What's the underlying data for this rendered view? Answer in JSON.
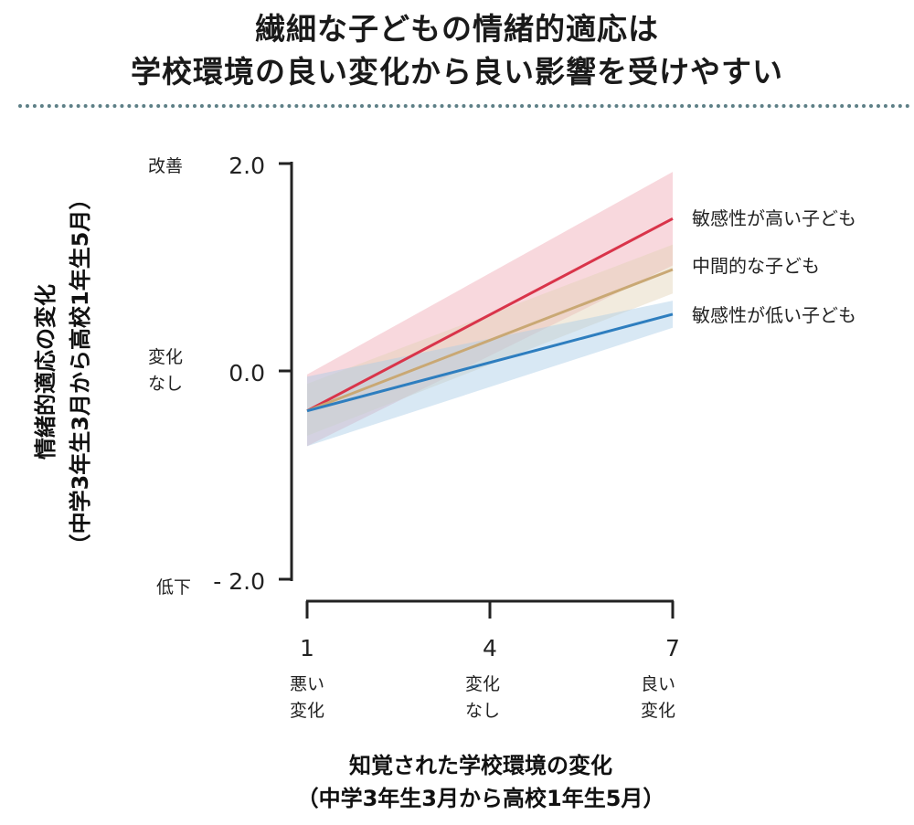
{
  "header": {
    "title_line1": "繊細な子どもの情緒的適応は",
    "title_line2": "学校環境の良い変化から良い影響を受けやすい"
  },
  "chart_data": {
    "type": "line",
    "title": "繊細な子どもの情緒的適応は学校環境の良い変化から良い影響を受けやすい",
    "xlabel_line1": "知覚された学校環境の変化",
    "xlabel_line2": "（中学3年生3月から高校1年生5月）",
    "ylabel_line1": "情緒的適応の変化",
    "ylabel_line2": "（中学3年生3月から高校1年生5月）",
    "x_ticks": [
      "1",
      "4",
      "7"
    ],
    "x_tick_annotations": [
      [
        "悪い",
        "変化"
      ],
      [
        "変化",
        "なし"
      ],
      [
        "良い",
        "変化"
      ]
    ],
    "y_ticks": [
      "2.0",
      "0.0",
      "- 2.0"
    ],
    "y_tick_annotations": [
      [
        "改善"
      ],
      [
        "変化",
        "なし"
      ],
      [
        "低下"
      ]
    ],
    "xlim": [
      1,
      7
    ],
    "ylim": [
      -2.0,
      2.0
    ],
    "series": [
      {
        "name": "敏感性が高い子ども",
        "color": "#d9344a",
        "band_color": "#f0a8b4",
        "x": [
          1,
          7
        ],
        "y": [
          -0.38,
          1.47
        ],
        "ci_lower": [
          -0.72,
          1.02
        ],
        "ci_upper": [
          -0.03,
          1.92
        ]
      },
      {
        "name": "中間的な子ども",
        "color": "#c9a874",
        "band_color": "#e3d3b6",
        "x": [
          1,
          7
        ],
        "y": [
          -0.38,
          0.98
        ],
        "ci_lower": [
          -0.62,
          0.75
        ],
        "ci_upper": [
          -0.12,
          1.22
        ]
      },
      {
        "name": "敏感性が低い子ども",
        "color": "#2e7ebf",
        "band_color": "#a9cbe6",
        "x": [
          1,
          7
        ],
        "y": [
          -0.38,
          0.55
        ],
        "ci_lower": [
          -0.72,
          0.42
        ],
        "ci_upper": [
          -0.05,
          0.68
        ]
      }
    ],
    "grid": false,
    "legend": "direct labels at right end of lines"
  }
}
